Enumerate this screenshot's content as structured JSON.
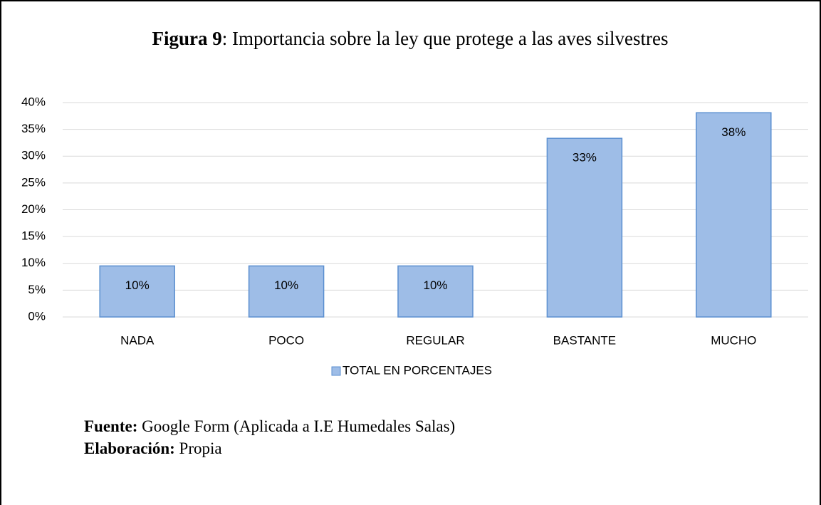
{
  "chart_data": {
    "type": "bar",
    "figure_label": "Figura 9",
    "title": ": Importancia sobre la ley que protege a las aves silvestres",
    "categories": [
      "NADA",
      "POCO",
      "REGULAR",
      "BASTANTE",
      "MUCHO"
    ],
    "series": [
      {
        "name": "TOTAL EN PORCENTAJES",
        "color": "#9ebde7",
        "values": [
          9.52,
          9.52,
          9.52,
          33.33,
          38.1
        ],
        "value_labels": [
          "10%",
          "10%",
          "10%",
          "33%",
          "38%"
        ]
      }
    ],
    "ylim": [
      0,
      40
    ],
    "yticks": [
      {
        "value": 0,
        "label": "0%"
      },
      {
        "value": 5,
        "label": "5%"
      },
      {
        "value": 10,
        "label": "10%"
      },
      {
        "value": 15,
        "label": "15%"
      },
      {
        "value": 20,
        "label": "20%"
      },
      {
        "value": 25,
        "label": "25%"
      },
      {
        "value": 30,
        "label": "30%"
      },
      {
        "value": 35,
        "label": "35%"
      },
      {
        "value": 40,
        "label": "40%"
      }
    ],
    "grid": true,
    "legend": "bottom",
    "source_label": "Fuente:",
    "source": "Google Form (Aplicada a I.E Humedales Salas)",
    "credit_label": "Elaboración:",
    "credit": "Propia"
  }
}
